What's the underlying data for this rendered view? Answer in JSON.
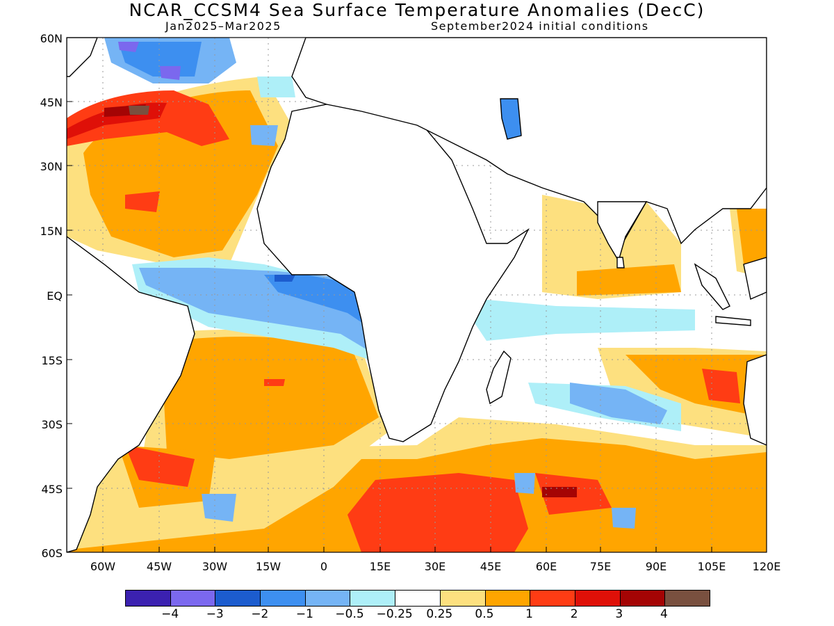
{
  "title": "NCAR_CCSM4 Sea Surface Temperature Anomalies (DecC)",
  "subtitle_left": "Jan2025–Mar2025",
  "subtitle_right": "September2024 initial conditions",
  "y_ticks": [
    "60N",
    "45N",
    "30N",
    "15N",
    "EQ",
    "15S",
    "30S",
    "45S",
    "60S"
  ],
  "x_ticks": [
    "60W",
    "45W",
    "30W",
    "15W",
    "0",
    "15E",
    "30E",
    "45E",
    "60E",
    "75E",
    "90E",
    "105E",
    "120E"
  ],
  "colorbar": {
    "colors": [
      "#3b21b0",
      "#7b68ee",
      "#1c5cce",
      "#3d8ff0",
      "#75b4f5",
      "#aeeff8",
      "#ffffff",
      "#fde07f",
      "#ffa500",
      "#ff3c14",
      "#df1008",
      "#a40404",
      "#79503f"
    ],
    "labels": [
      "−4",
      "−3",
      "−2",
      "−1",
      "−0.5",
      "−0.25",
      "0.25",
      "0.5",
      "1",
      "2",
      "3",
      "4"
    ]
  }
}
